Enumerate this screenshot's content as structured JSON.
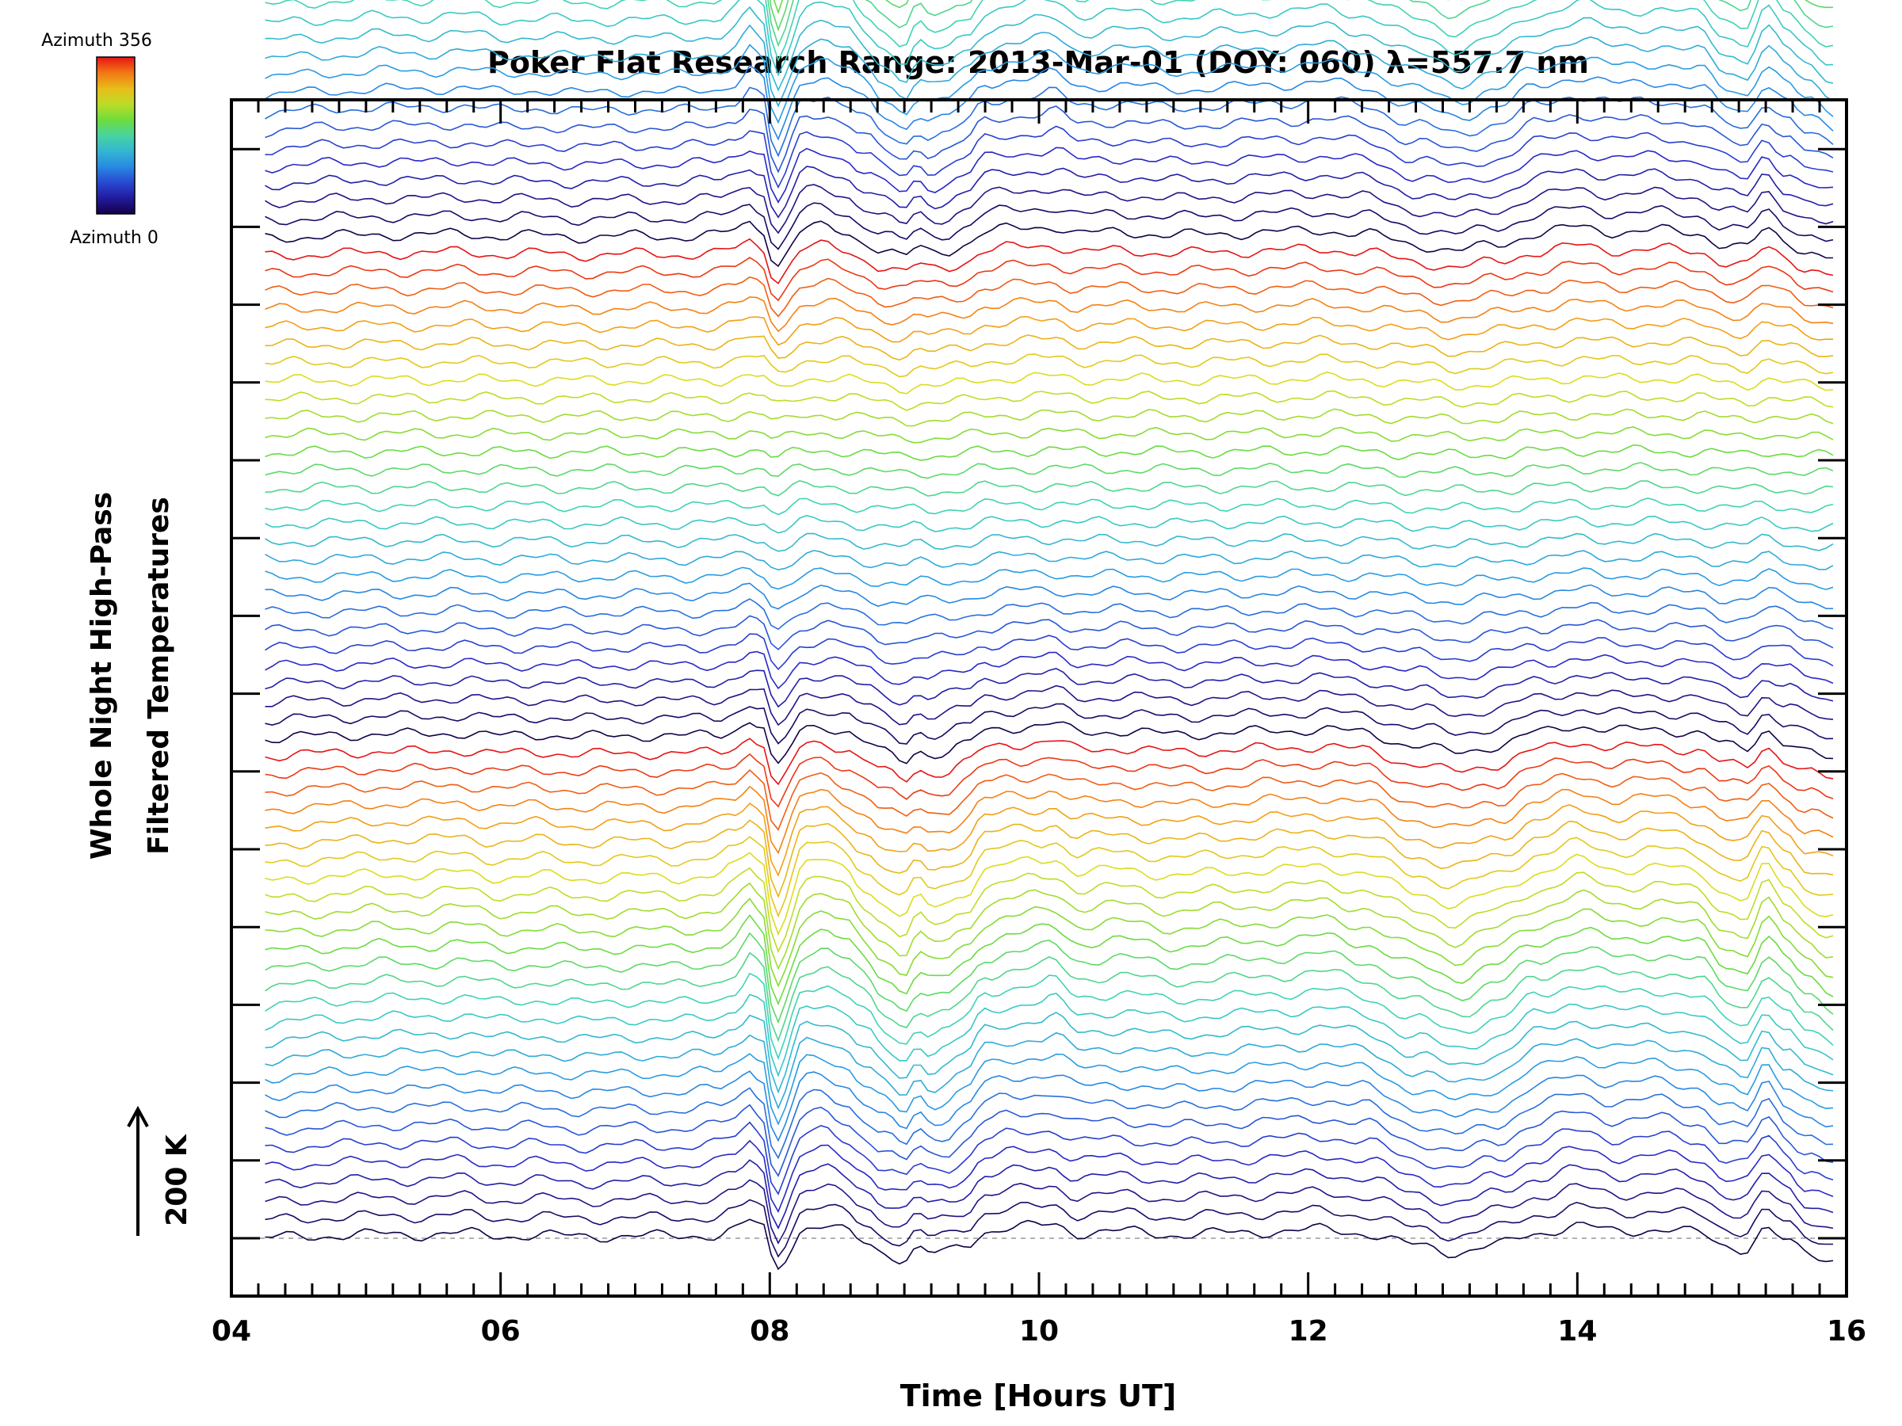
{
  "chart_data": {
    "type": "line",
    "title": "Poker Flat Research Range: 2013-Mar-01 (DOY: 060) λ=557.7 nm",
    "xlabel": "Time [Hours UT]",
    "ylabel": [
      "Whole Night High-Pass",
      "Filtered Temperatures"
    ],
    "xlim": [
      4,
      16
    ],
    "x_ticks": [
      4,
      6,
      8,
      10,
      12,
      14,
      16
    ],
    "x_tick_labels": [
      "04",
      "06",
      "08",
      "10",
      "12",
      "14",
      "16"
    ],
    "x_minor_step_hours": 0.2,
    "y_tick_count": 15,
    "data_start_hour": 4.25,
    "data_end_hour": 15.9,
    "scale_bar": {
      "label": "200 K",
      "kelvin": 200
    },
    "colorbar": {
      "top_label": "Azimuth 356",
      "bottom_label": "Azimuth 0",
      "azimuth_min": 0,
      "azimuth_max": 356
    },
    "series_info": {
      "count": 140,
      "azimuth_cycle": 28,
      "stacked_offset_K": 28,
      "description": "stacked high-pass filtered temperature traces, one per azimuth sample, colored by azimuth"
    },
    "common_features": {
      "x": [
        4.25,
        4.5,
        4.8,
        5.1,
        5.4,
        5.7,
        6.0,
        6.3,
        6.6,
        7.0,
        7.3,
        7.6,
        7.75,
        7.85,
        7.95,
        8.02,
        8.08,
        8.15,
        8.25,
        8.4,
        8.55,
        8.7,
        8.85,
        9.0,
        9.1,
        9.2,
        9.3,
        9.45,
        9.6,
        9.8,
        10.0,
        10.1,
        10.3,
        10.6,
        11.0,
        11.4,
        11.8,
        12.1,
        12.4,
        12.8,
        13.1,
        13.4,
        13.7,
        14.0,
        14.3,
        14.6,
        14.9,
        15.1,
        15.25,
        15.4,
        15.55,
        15.7,
        15.9
      ],
      "y_K": [
        0,
        5,
        8,
        12,
        10,
        15,
        6,
        10,
        4,
        8,
        5,
        10,
        25,
        50,
        30,
        -60,
        -90,
        -20,
        30,
        35,
        20,
        -10,
        -40,
        -60,
        -30,
        -45,
        -40,
        -20,
        20,
        30,
        35,
        40,
        15,
        20,
        10,
        15,
        20,
        25,
        15,
        -20,
        -40,
        -20,
        15,
        35,
        20,
        25,
        15,
        -20,
        -30,
        25,
        -10,
        -40,
        -60
      ]
    }
  }
}
